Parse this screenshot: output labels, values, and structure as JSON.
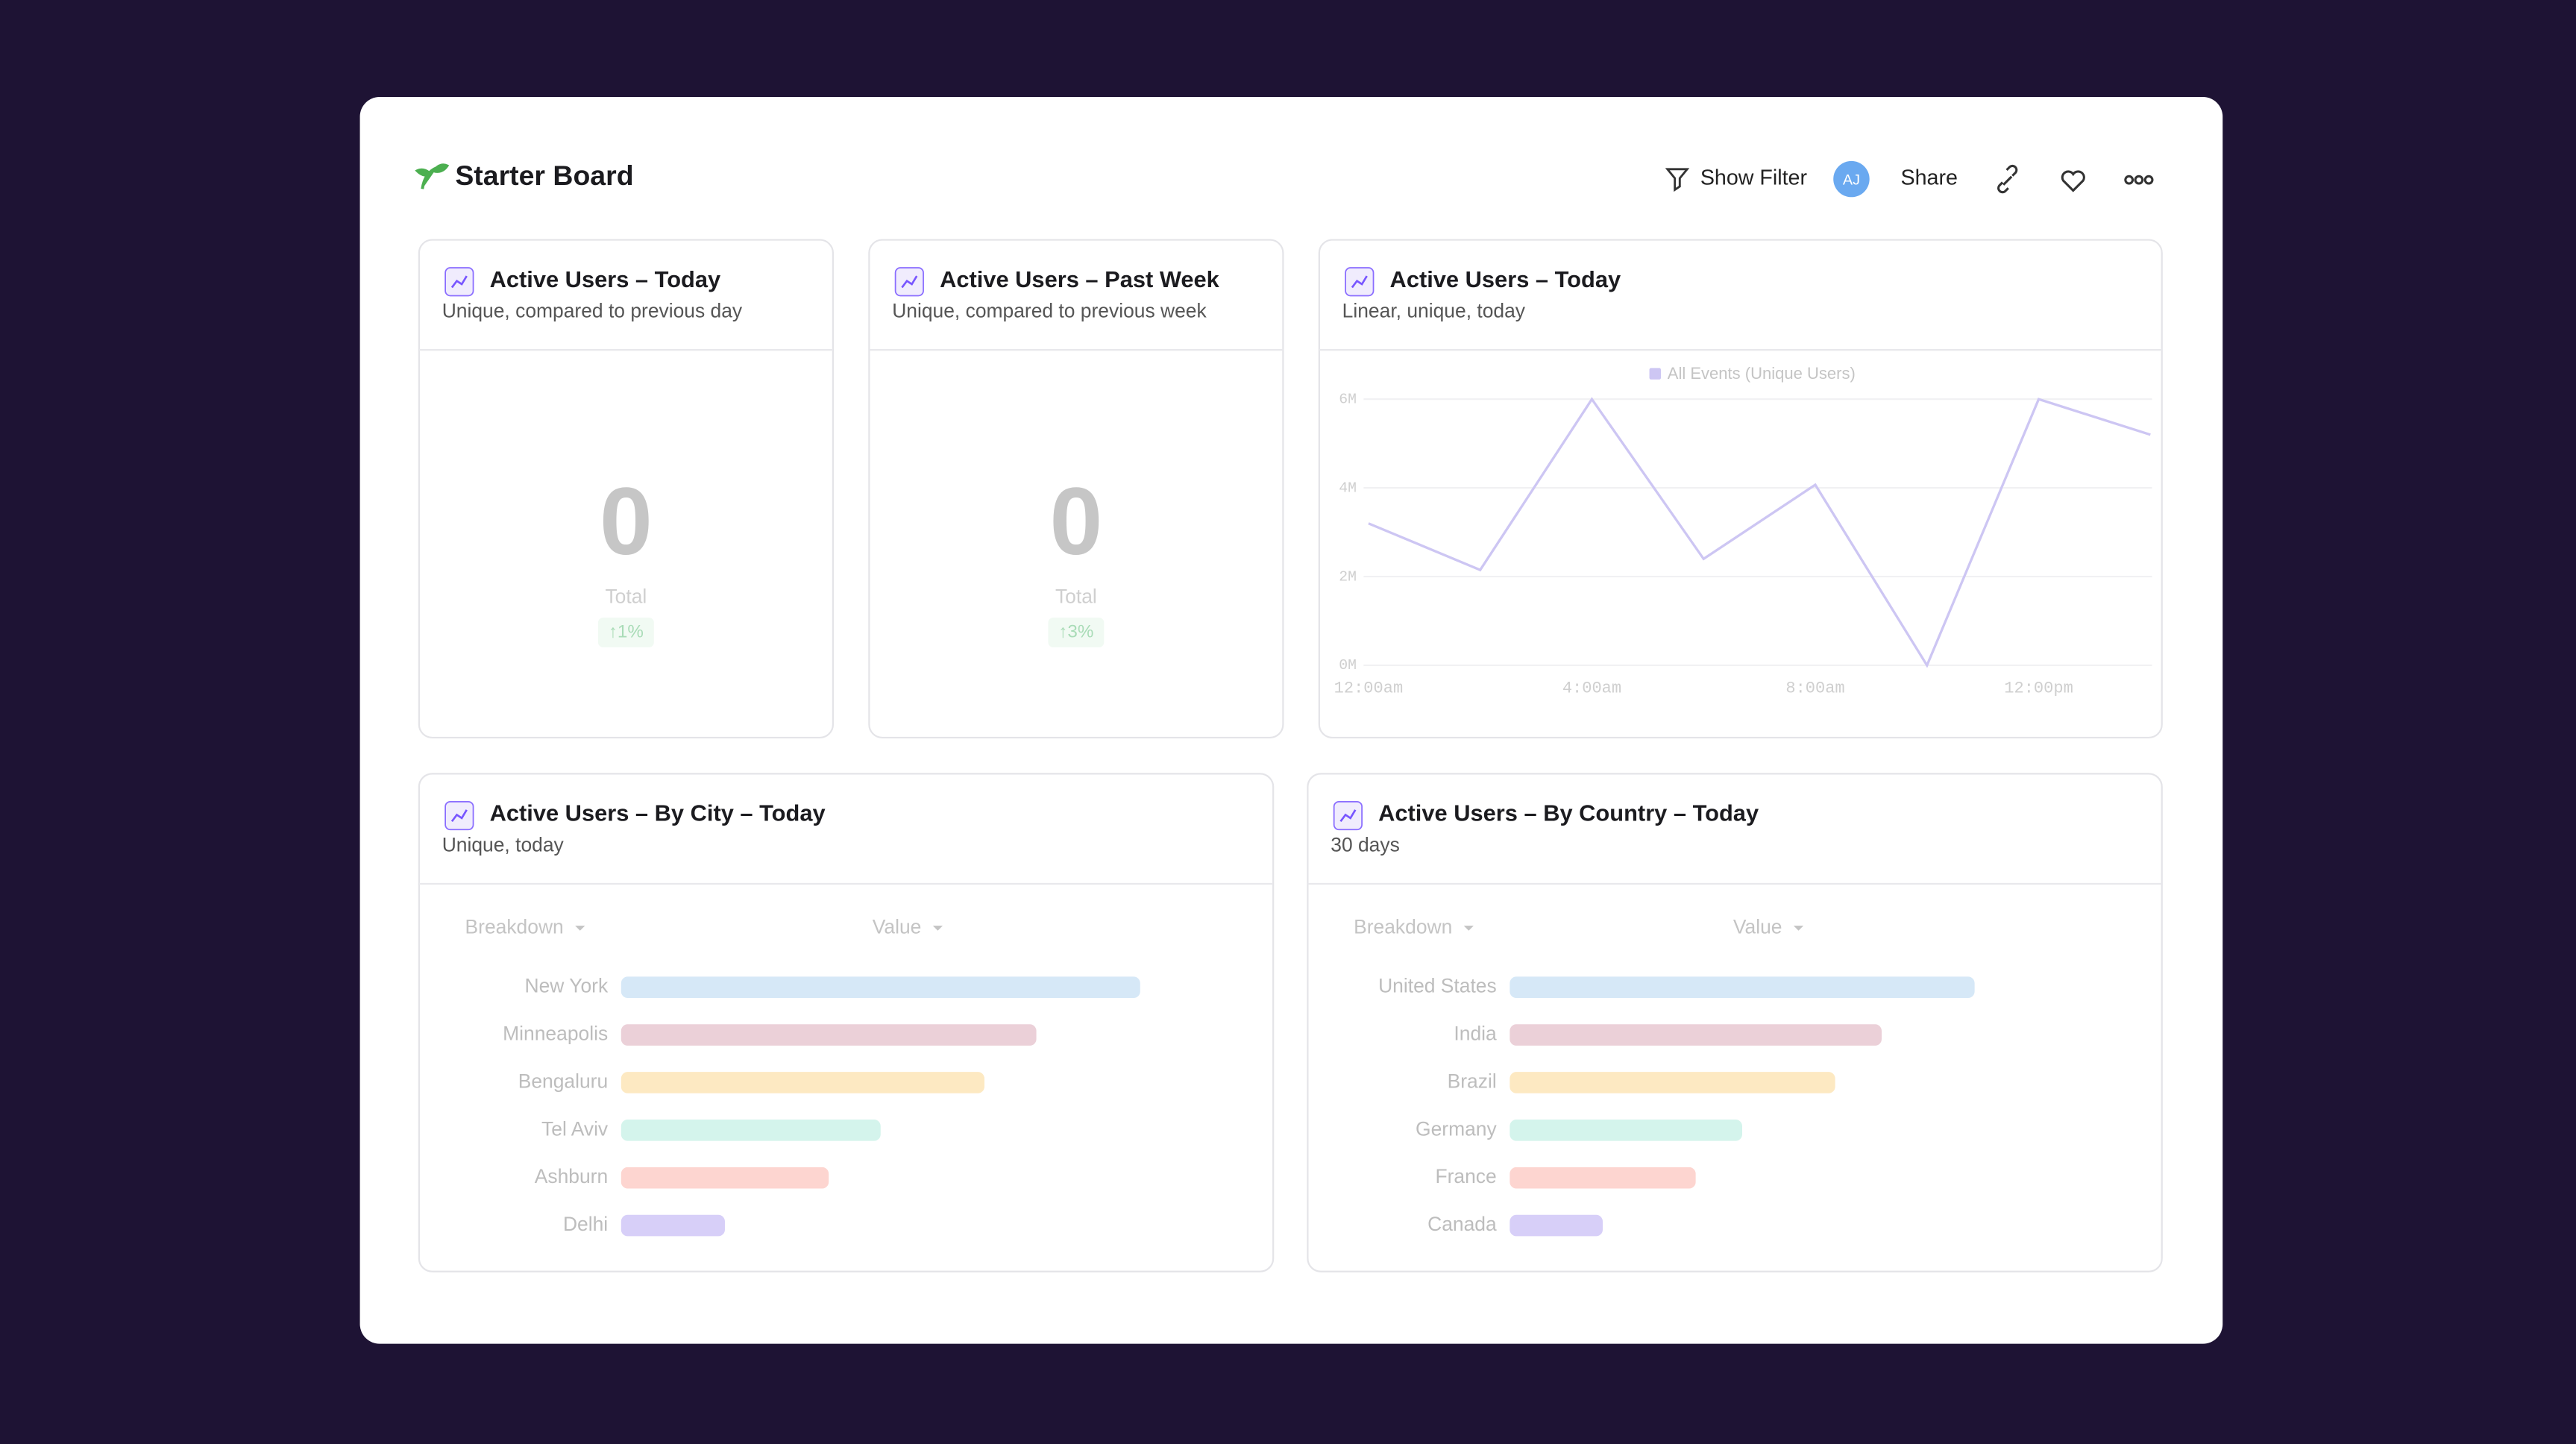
{
  "header": {
    "title": "Starter Board",
    "actions": [
      "Show Filter",
      "Share"
    ],
    "avatar": "AJ"
  },
  "cards": [
    {
      "title": "Active Users – Today",
      "subtitle": "Unique, compared to previous day",
      "value": 0,
      "value_label": "Total",
      "change": "↑1%"
    },
    {
      "title": "Active Users – Past Week",
      "subtitle": "Unique, compared to previous week",
      "value": 0,
      "value_label": "Total",
      "change": "↑3%"
    },
    {
      "title": "Active Users – Today",
      "subtitle": "Linear, unique, today",
      "chart_data": {
        "type": "line",
        "x": [
          "12:00am",
          null,
          "4:00am",
          null,
          "8:00am",
          null,
          "12:00pm",
          null
        ],
        "series": [
          {
            "name": "All Events (Unique Users)",
            "color": "#cdc6f3",
            "values": [
              3200000,
              2150000,
              6000000,
              2400000,
              4070000,
              0,
              6000000,
              5200000
            ]
          }
        ],
        "ylim": [
          0,
          6000000
        ],
        "yticks": [
          {
            "value": 0,
            "label": "0M"
          },
          {
            "value": 2000000,
            "label": "2M"
          },
          {
            "value": 4000000,
            "label": "4M"
          },
          {
            "value": 6000000,
            "label": "6M"
          }
        ],
        "grid": true
      }
    },
    {
      "title": "Active Users – By City – Today",
      "subtitle": "Unique, today",
      "columns": [
        "Breakdown",
        "Value"
      ],
      "chart_data": {
        "type": "bar",
        "categories": [
          "New York",
          "Minneapolis",
          "Bengaluru",
          "Tel Aviv",
          "Ashburn",
          "Delhi"
        ],
        "values": [
          100,
          80,
          70,
          50,
          40,
          20
        ],
        "colors": [
          "#d6e8f7",
          "#ebd0d8",
          "#fde9c2",
          "#d4f4ec",
          "#fdd5d0",
          "#d7cff8"
        ]
      }
    },
    {
      "title": "Active Users – By Country – Today",
      "subtitle": "30 days",
      "columns": [
        "Breakdown",
        "Value"
      ],
      "chart_data": {
        "type": "bar",
        "categories": [
          "United States",
          "India",
          "Brazil",
          "Germany",
          "France",
          "Canada"
        ],
        "values": [
          100,
          80,
          70,
          50,
          40,
          20
        ],
        "colors": [
          "#d6e8f7",
          "#ebd0d8",
          "#fde9c2",
          "#d4f4ec",
          "#fdd5d0",
          "#d7cff8"
        ]
      }
    }
  ]
}
